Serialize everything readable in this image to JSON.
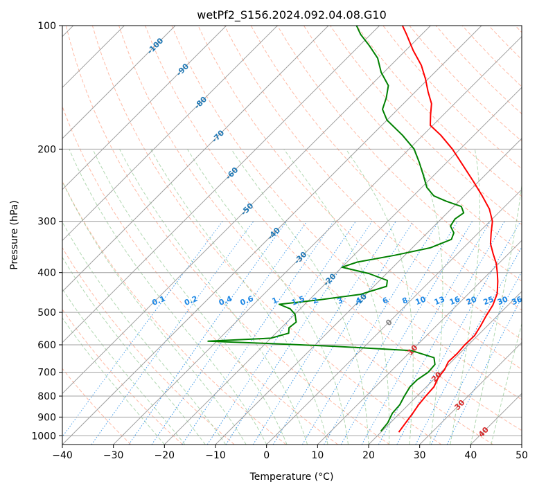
{
  "chart_data": {
    "type": "line",
    "chart_kind": "skew-T log-P diagram",
    "title": "wetPf2_S156.2024.092.04.08.G10",
    "xlabel": "Temperature (°C)",
    "ylabel": "Pressure (hPa)",
    "xlim": [
      -40,
      50
    ],
    "ylim": [
      1050,
      100
    ],
    "y_scale": "log",
    "grid": true,
    "x_ticks": [
      -40,
      -30,
      -20,
      -10,
      0,
      10,
      20,
      30,
      40,
      50
    ],
    "y_ticks": [
      1000,
      900,
      800,
      700,
      600,
      500,
      400,
      300,
      200,
      100
    ],
    "colors": {
      "temperature": "#ff0000",
      "dewpoint": "#008000",
      "dry_adiabat": "#ff8c69",
      "moist_adiabat": "#90c890",
      "mixing_ratio": "#1e88e5",
      "isotherm": "#a0a0a0",
      "isotherm_label": "#1f77b4",
      "isotherm_label_warm": "#d62728"
    },
    "series": [
      {
        "name": "Temperature",
        "color": "#ff0000",
        "points": [
          {
            "p": 980,
            "t": 23.5
          },
          {
            "p": 930,
            "t": 23.0
          },
          {
            "p": 880,
            "t": 22.5
          },
          {
            "p": 840,
            "t": 22.0
          },
          {
            "p": 800,
            "t": 21.7
          },
          {
            "p": 760,
            "t": 21.5
          },
          {
            "p": 720,
            "t": 20.5
          },
          {
            "p": 690,
            "t": 20.2
          },
          {
            "p": 660,
            "t": 19.4
          },
          {
            "p": 630,
            "t": 19.5
          },
          {
            "p": 600,
            "t": 19.3
          },
          {
            "p": 570,
            "t": 19.4
          },
          {
            "p": 540,
            "t": 18.7
          },
          {
            "p": 510,
            "t": 17.8
          },
          {
            "p": 480,
            "t": 17.0
          },
          {
            "p": 450,
            "t": 15.6
          },
          {
            "p": 420,
            "t": 13.3
          },
          {
            "p": 400,
            "t": 11.5
          },
          {
            "p": 380,
            "t": 9.5
          },
          {
            "p": 360,
            "t": 7.0
          },
          {
            "p": 340,
            "t": 4.5
          },
          {
            "p": 320,
            "t": 2.5
          },
          {
            "p": 300,
            "t": 0.5
          },
          {
            "p": 280,
            "t": -2.5
          },
          {
            "p": 260,
            "t": -6.5
          },
          {
            "p": 240,
            "t": -11.0
          },
          {
            "p": 220,
            "t": -16.0
          },
          {
            "p": 200,
            "t": -21.5
          },
          {
            "p": 185,
            "t": -26.5
          },
          {
            "p": 175,
            "t": -30.5
          },
          {
            "p": 165,
            "t": -32.5
          },
          {
            "p": 155,
            "t": -34.5
          },
          {
            "p": 145,
            "t": -37.5
          },
          {
            "p": 135,
            "t": -40.5
          },
          {
            "p": 125,
            "t": -44.0
          },
          {
            "p": 115,
            "t": -48.5
          },
          {
            "p": 105,
            "t": -53.0
          },
          {
            "p": 100,
            "t": -55.5
          }
        ]
      },
      {
        "name": "Dewpoint",
        "color": "#008000",
        "points": [
          {
            "p": 975,
            "t": 19.8
          },
          {
            "p": 930,
            "t": 19.5
          },
          {
            "p": 880,
            "t": 18.5
          },
          {
            "p": 840,
            "t": 18.3
          },
          {
            "p": 800,
            "t": 17.5
          },
          {
            "p": 760,
            "t": 16.8
          },
          {
            "p": 730,
            "t": 16.8
          },
          {
            "p": 700,
            "t": 17.5
          },
          {
            "p": 670,
            "t": 17.3
          },
          {
            "p": 645,
            "t": 15.8
          },
          {
            "p": 620,
            "t": 10.0
          },
          {
            "p": 605,
            "t": -6.0
          },
          {
            "p": 595,
            "t": -20.0
          },
          {
            "p": 588,
            "t": -31.7
          },
          {
            "p": 578,
            "t": -20.0
          },
          {
            "p": 562,
            "t": -17.5
          },
          {
            "p": 545,
            "t": -18.5
          },
          {
            "p": 528,
            "t": -18.2
          },
          {
            "p": 505,
            "t": -20.0
          },
          {
            "p": 490,
            "t": -22.0
          },
          {
            "p": 478,
            "t": -25.0
          },
          {
            "p": 466,
            "t": -18.0
          },
          {
            "p": 452,
            "t": -11.0
          },
          {
            "p": 432,
            "t": -7.5
          },
          {
            "p": 418,
            "t": -8.5
          },
          {
            "p": 402,
            "t": -13.5
          },
          {
            "p": 388,
            "t": -20.0
          },
          {
            "p": 377,
            "t": -18.0
          },
          {
            "p": 363,
            "t": -12.0
          },
          {
            "p": 348,
            "t": -6.5
          },
          {
            "p": 332,
            "t": -4.0
          },
          {
            "p": 320,
            "t": -4.8
          },
          {
            "p": 308,
            "t": -6.8
          },
          {
            "p": 296,
            "t": -7.3
          },
          {
            "p": 286,
            "t": -6.8
          },
          {
            "p": 276,
            "t": -8.5
          },
          {
            "p": 268,
            "t": -12.5
          },
          {
            "p": 260,
            "t": -16.0
          },
          {
            "p": 248,
            "t": -19.0
          },
          {
            "p": 232,
            "t": -22.0
          },
          {
            "p": 215,
            "t": -25.5
          },
          {
            "p": 200,
            "t": -29.0
          },
          {
            "p": 185,
            "t": -34.0
          },
          {
            "p": 170,
            "t": -40.0
          },
          {
            "p": 160,
            "t": -43.0
          },
          {
            "p": 150,
            "t": -44.5
          },
          {
            "p": 140,
            "t": -46.5
          },
          {
            "p": 130,
            "t": -50.5
          },
          {
            "p": 120,
            "t": -54.0
          },
          {
            "p": 112,
            "t": -58.0
          },
          {
            "p": 105,
            "t": -62.0
          },
          {
            "p": 100,
            "t": -64.5
          }
        ]
      }
    ],
    "isotherm_labels": [
      {
        "t": -100,
        "p": 112
      },
      {
        "t": -90,
        "p": 128
      },
      {
        "t": -80,
        "p": 154
      },
      {
        "t": -70,
        "p": 186
      },
      {
        "t": -60,
        "p": 229
      },
      {
        "t": -50,
        "p": 280
      },
      {
        "t": -40,
        "p": 321
      },
      {
        "t": -30,
        "p": 368
      },
      {
        "t": -20,
        "p": 416
      },
      {
        "t": -10,
        "p": 466
      },
      {
        "t": 0,
        "p": 529
      },
      {
        "t": 10,
        "p": 617
      },
      {
        "t": 20,
        "p": 718
      },
      {
        "t": 30,
        "p": 840
      },
      {
        "t": 40,
        "p": 978
      }
    ],
    "mixing_ratio_labels": [
      "0.1",
      "0.2",
      "0.4",
      "0.6",
      "1",
      "1.5",
      "2",
      "3",
      "4",
      "6",
      "8",
      "10",
      "13",
      "16",
      "20",
      "25",
      "30",
      "36"
    ],
    "mixing_ratio_values": [
      0.1,
      0.2,
      0.4,
      0.6,
      1,
      1.5,
      2,
      3,
      4,
      6,
      8,
      10,
      13,
      16,
      20,
      25,
      30,
      36
    ],
    "mixing_ratio_label_pressure": 480
  }
}
